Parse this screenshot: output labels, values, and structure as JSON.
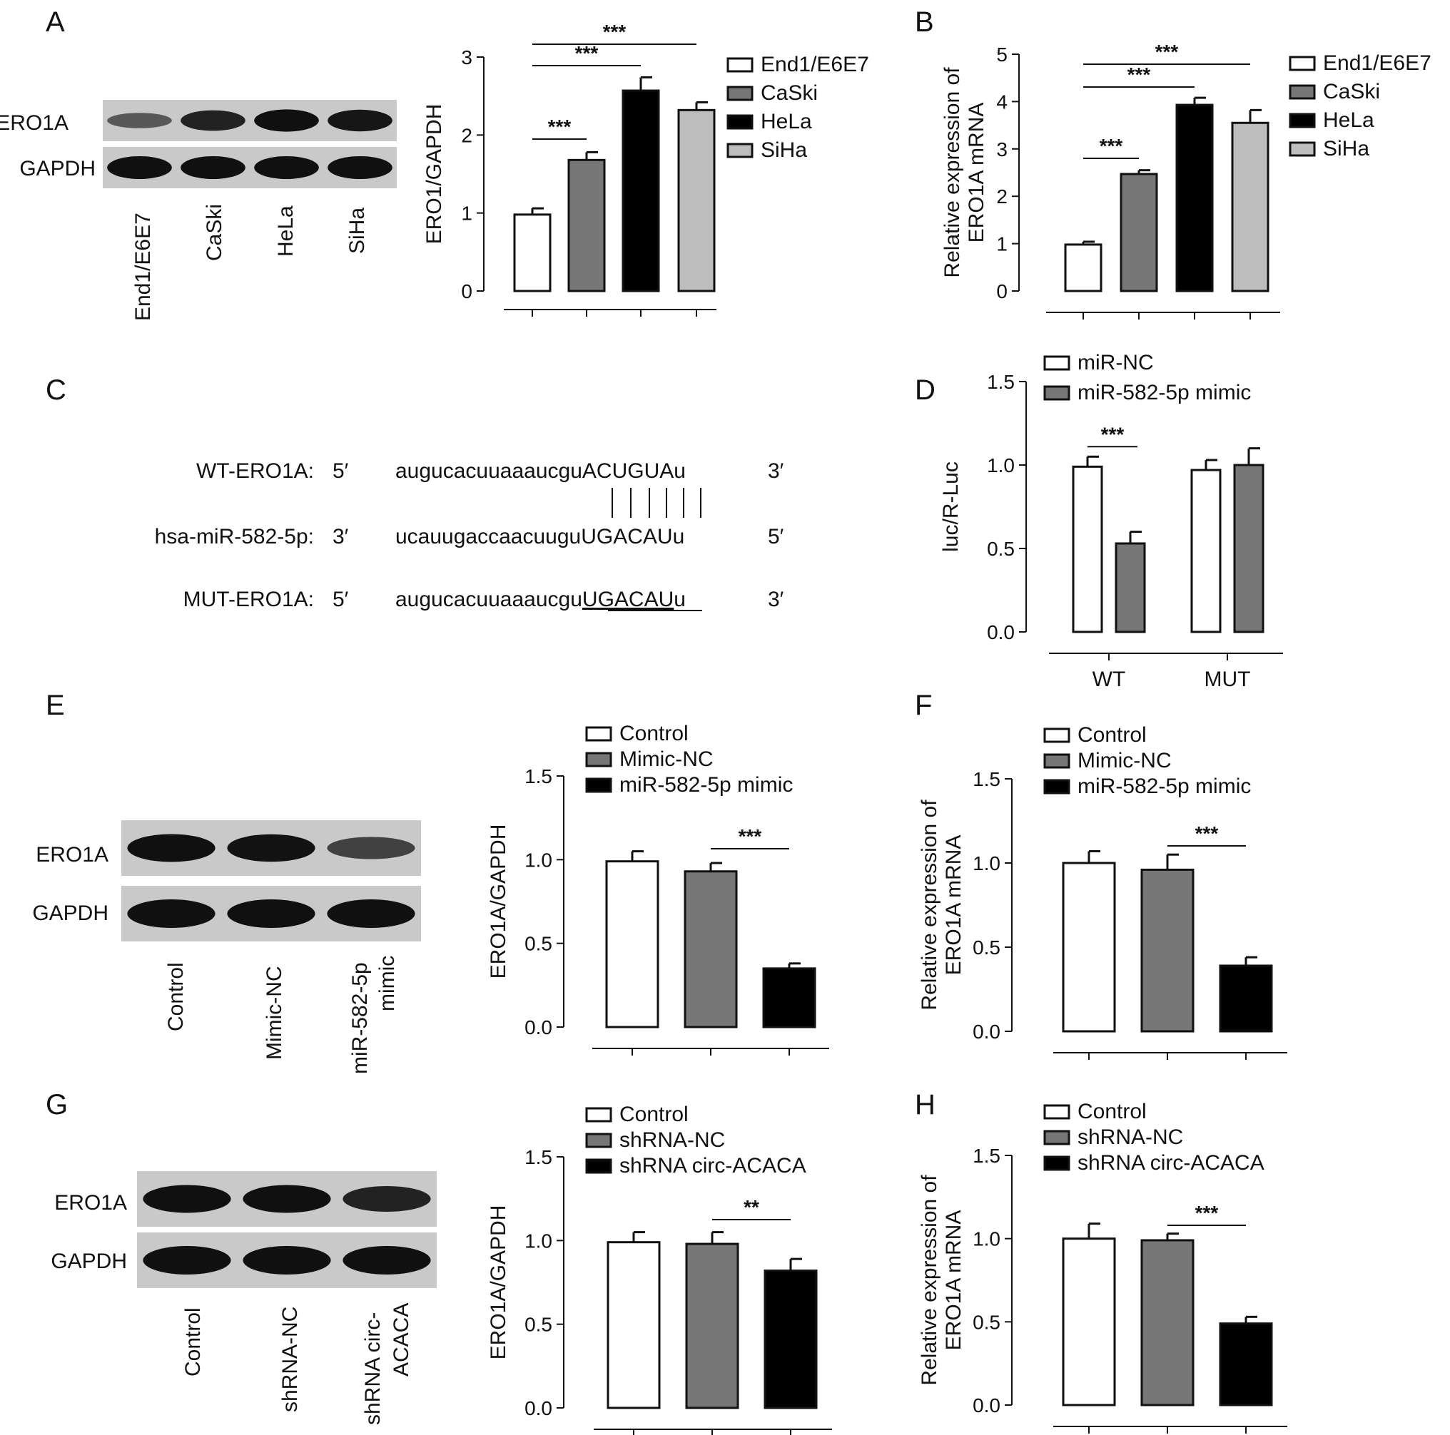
{
  "panels": [
    {
      "id": "A",
      "letter": "A"
    },
    {
      "id": "B",
      "letter": "B"
    },
    {
      "id": "C",
      "letter": "C"
    },
    {
      "id": "D",
      "letter": "D"
    },
    {
      "id": "E",
      "letter": "E"
    },
    {
      "id": "F",
      "letter": "F"
    },
    {
      "id": "G",
      "letter": "G"
    },
    {
      "id": "H",
      "letter": "H"
    }
  ],
  "blots": {
    "A": {
      "rows": [
        "ERO1A",
        "GAPDH"
      ],
      "lanes": [
        "End1/E6E7",
        "CaSki",
        "HeLa",
        "SiHa"
      ],
      "ero1a_intensity": [
        0.35,
        0.8,
        0.95,
        0.9
      ]
    },
    "E": {
      "rows": [
        "ERO1A",
        "GAPDH"
      ],
      "lanes": [
        "Control",
        "Mimic-NC",
        "miR-582-5p mimic"
      ],
      "ero1a_intensity": [
        0.95,
        0.93,
        0.55
      ]
    },
    "G": {
      "rows": [
        "ERO1A",
        "GAPDH"
      ],
      "lanes": [
        "Control",
        "shRNA-NC",
        "shRNA circ-ACACA"
      ],
      "ero1a_intensity": [
        0.95,
        0.95,
        0.8
      ]
    }
  },
  "sequence": {
    "rows": [
      {
        "label": "WT-ERO1A:",
        "end5": "5′",
        "seq_plain": "augucacuuaaaucgu",
        "seq_key": "ACUGUA",
        "seq_tail": "u",
        "end3": "3′"
      },
      {
        "label": "hsa-miR-582-5p:",
        "end5": "3′",
        "seq_plain": "ucauugaccaacuugu",
        "seq_key": "UGACAU",
        "seq_tail": "u",
        "end3": "5′"
      },
      {
        "label": "MUT-ERO1A:",
        "end5": "5′",
        "seq_plain": "augucacuuaaaucgu",
        "seq_key": "UGACAU",
        "seq_tail": "u",
        "end3": "3′"
      }
    ]
  },
  "colors": {
    "white": "#ffffff",
    "dark_gray": "#777777",
    "black": "#000000",
    "light_gray": "#bdbdbd"
  },
  "chart_data": [
    {
      "panel": "A",
      "type": "bar",
      "ylabel": "ERO1/GAPDH",
      "ylim": [
        0,
        3
      ],
      "yticks": [
        "0",
        "1",
        "2",
        "3"
      ],
      "categories": [
        "End1/E6E7",
        "CaSki",
        "HeLa",
        "SiHa"
      ],
      "values": [
        0.98,
        1.68,
        2.57,
        2.32
      ],
      "errors": [
        0.08,
        0.1,
        0.17,
        0.1
      ],
      "colors": [
        "#ffffff",
        "#777777",
        "#000000",
        "#bdbdbd"
      ],
      "legend": [
        "End1/E6E7",
        "CaSki",
        "HeLa",
        "SiHa"
      ],
      "significance": [
        {
          "from": 0,
          "to": 1,
          "label": "***"
        },
        {
          "from": 0,
          "to": 2,
          "label": "***"
        },
        {
          "from": 0,
          "to": 3,
          "label": "***"
        }
      ]
    },
    {
      "panel": "B",
      "type": "bar",
      "ylabel": "Relative expression of ERO1A mRNA",
      "ylim": [
        0,
        5
      ],
      "yticks": [
        "0",
        "1",
        "2",
        "3",
        "4",
        "5"
      ],
      "categories": [
        "End1/E6E7",
        "CaSki",
        "HeLa",
        "SiHa"
      ],
      "values": [
        0.98,
        2.47,
        3.93,
        3.55
      ],
      "errors": [
        0.06,
        0.08,
        0.15,
        0.27
      ],
      "colors": [
        "#ffffff",
        "#777777",
        "#000000",
        "#bdbdbd"
      ],
      "legend": [
        "End1/E6E7",
        "CaSki",
        "HeLa",
        "SiHa"
      ],
      "significance": [
        {
          "from": 0,
          "to": 1,
          "label": "***"
        },
        {
          "from": 0,
          "to": 2,
          "label": "***"
        },
        {
          "from": 0,
          "to": 3,
          "label": "***"
        }
      ]
    },
    {
      "panel": "D",
      "type": "bar",
      "ylabel": "luc/R-Luc",
      "ylim": [
        0,
        1.5
      ],
      "yticks": [
        "0.0",
        "0.5",
        "1.0",
        "1.5"
      ],
      "categories": [
        "WT",
        "MUT"
      ],
      "series": [
        {
          "name": "miR-NC",
          "values": [
            0.99,
            0.97
          ],
          "errors": [
            0.06,
            0.06
          ],
          "color": "#ffffff"
        },
        {
          "name": "miR-582-5p mimic",
          "values": [
            0.53,
            1.0
          ],
          "errors": [
            0.07,
            0.1
          ],
          "color": "#777777"
        }
      ],
      "significance": [
        {
          "group": 0,
          "label": "***"
        }
      ]
    },
    {
      "panel": "E",
      "type": "bar",
      "ylabel": "ERO1A/GAPDH",
      "ylim": [
        0,
        1.5
      ],
      "yticks": [
        "0.0",
        "0.5",
        "1.0",
        "1.5"
      ],
      "categories": [
        "Control",
        "Mimic-NC",
        "miR-582-5p mimic"
      ],
      "values": [
        0.99,
        0.93,
        0.35
      ],
      "errors": [
        0.06,
        0.05,
        0.03
      ],
      "colors": [
        "#ffffff",
        "#777777",
        "#000000"
      ],
      "legend": [
        "Control",
        "Mimic-NC",
        "miR-582-5p mimic"
      ],
      "significance": [
        {
          "from": 1,
          "to": 2,
          "label": "***"
        }
      ]
    },
    {
      "panel": "F",
      "type": "bar",
      "ylabel": "Relative expression of ERO1A mRNA",
      "ylim": [
        0,
        1.5
      ],
      "yticks": [
        "0.0",
        "0.5",
        "1.0",
        "1.5"
      ],
      "categories": [
        "Control",
        "Mimic-NC",
        "miR-582-5p mimic"
      ],
      "values": [
        1.0,
        0.96,
        0.39
      ],
      "errors": [
        0.07,
        0.09,
        0.05
      ],
      "colors": [
        "#ffffff",
        "#777777",
        "#000000"
      ],
      "legend": [
        "Control",
        "Mimic-NC",
        "miR-582-5p mimic"
      ],
      "significance": [
        {
          "from": 1,
          "to": 2,
          "label": "***"
        }
      ]
    },
    {
      "panel": "G",
      "type": "bar",
      "ylabel": "ERO1A/GAPDH",
      "ylim": [
        0,
        1.5
      ],
      "yticks": [
        "0.0",
        "0.5",
        "1.0",
        "1.5"
      ],
      "categories": [
        "Control",
        "shRNA-NC",
        "shRNA circ-ACACA"
      ],
      "values": [
        0.99,
        0.98,
        0.82
      ],
      "errors": [
        0.06,
        0.07,
        0.07
      ],
      "colors": [
        "#ffffff",
        "#777777",
        "#000000"
      ],
      "legend": [
        "Control",
        "shRNA-NC",
        "shRNA circ-ACACA"
      ],
      "significance": [
        {
          "from": 1,
          "to": 2,
          "label": "**"
        }
      ]
    },
    {
      "panel": "H",
      "type": "bar",
      "ylabel": "Relative expression of ERO1A mRNA",
      "ylim": [
        0,
        1.5
      ],
      "yticks": [
        "0.0",
        "0.5",
        "1.0",
        "1.5"
      ],
      "categories": [
        "Control",
        "shRNA-NC",
        "shRNA circ-ACACA"
      ],
      "values": [
        1.0,
        0.99,
        0.49
      ],
      "errors": [
        0.09,
        0.04,
        0.04
      ],
      "colors": [
        "#ffffff",
        "#777777",
        "#000000"
      ],
      "legend": [
        "Control",
        "shRNA-NC",
        "shRNA circ-ACACA"
      ],
      "significance": [
        {
          "from": 1,
          "to": 2,
          "label": "***"
        }
      ]
    }
  ]
}
